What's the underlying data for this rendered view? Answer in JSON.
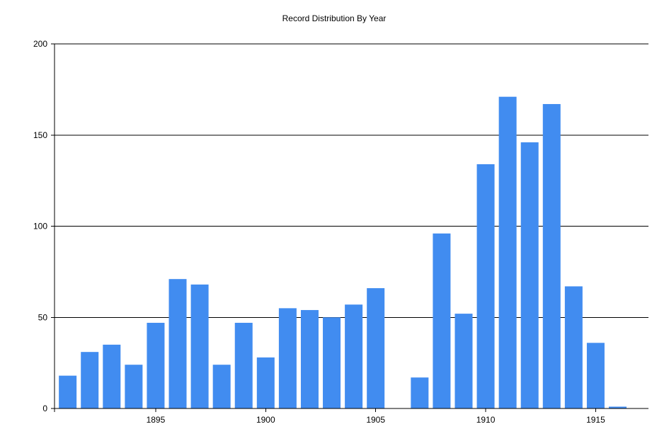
{
  "chart_data": {
    "type": "bar",
    "title": "Record Distribution By Year",
    "xlabel": "",
    "ylabel": "",
    "x": [
      1891,
      1892,
      1893,
      1894,
      1895,
      1896,
      1897,
      1898,
      1899,
      1900,
      1901,
      1902,
      1903,
      1904,
      1905,
      1906,
      1907,
      1908,
      1909,
      1910,
      1911,
      1912,
      1913,
      1914,
      1915,
      1916
    ],
    "values": [
      18,
      31,
      35,
      24,
      47,
      71,
      68,
      24,
      47,
      28,
      55,
      54,
      50,
      57,
      66,
      0,
      17,
      96,
      52,
      134,
      171,
      146,
      167,
      67,
      36,
      1
    ],
    "xlim": [
      1890.4,
      1917.4
    ],
    "ylim": [
      0,
      200
    ],
    "x_ticks": [
      "1895",
      "1900",
      "1905",
      "1910",
      "1915"
    ],
    "y_ticks": [
      "0",
      "50",
      "100",
      "150",
      "200"
    ],
    "bar_color": "#418CF0",
    "grid": true,
    "legend": "none"
  }
}
